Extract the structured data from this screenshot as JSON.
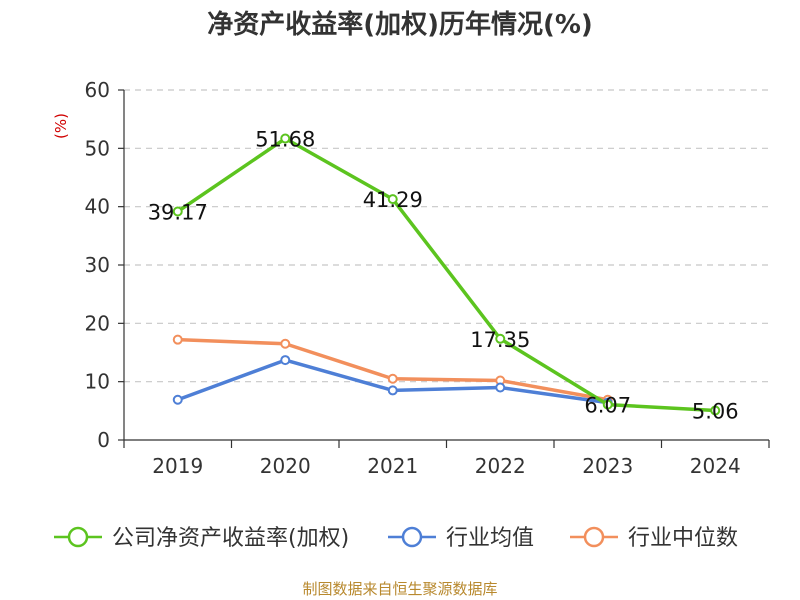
{
  "title": "净资产收益率(加权)历年情况(%)",
  "source": "制图数据来自恒生聚源数据库",
  "chart_data": {
    "type": "line",
    "title": "净资产收益率(加权)历年情况(%)",
    "unit": "(%)",
    "categories": [
      "2019",
      "2020",
      "2021",
      "2022",
      "2023",
      "2024"
    ],
    "ylim": [
      0,
      60
    ],
    "yticks": [
      0,
      10,
      20,
      30,
      40,
      50,
      60
    ],
    "ytick_labels": [
      "0",
      "10",
      "20",
      "30",
      "40",
      "50",
      "60"
    ],
    "grid": true,
    "legend_position": "bottom",
    "series": [
      {
        "name": "公司净资产收益率(加权)",
        "color": "#5cc41f",
        "values": [
          39.17,
          51.68,
          41.29,
          17.35,
          6.07,
          5.06
        ],
        "labels": [
          "39.17",
          "51.68",
          "41.29",
          "17.35",
          "6.07",
          "5.06"
        ]
      },
      {
        "name": "行业均值",
        "color": "#4e7fd6",
        "values": [
          6.9,
          13.7,
          8.5,
          9.0,
          6.4,
          null
        ],
        "labels": []
      },
      {
        "name": "行业中位数",
        "color": "#f28f5c",
        "values": [
          17.2,
          16.5,
          10.5,
          10.2,
          6.9,
          null
        ],
        "labels": []
      }
    ]
  },
  "colors": {
    "axis": "#333333",
    "grid": "#c8c8c8",
    "unit": "#d00000",
    "source": "#b8892e"
  }
}
